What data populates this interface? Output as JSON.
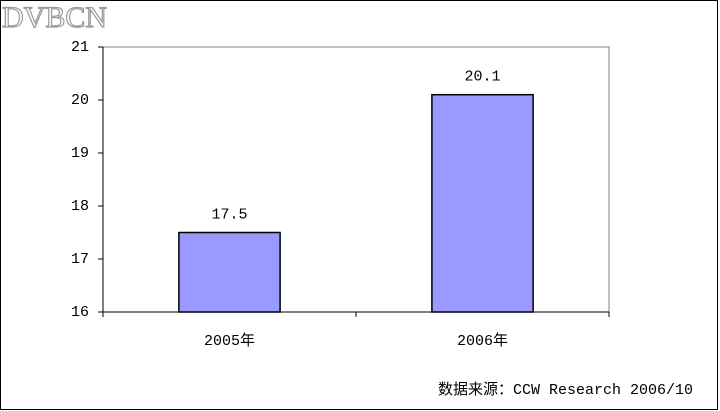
{
  "watermark": "DVBCN",
  "chart_data": {
    "type": "bar",
    "categories": [
      "2005年",
      "2006年"
    ],
    "values": [
      17.5,
      20.1
    ],
    "color": "#9999ff",
    "ylim": [
      16,
      21
    ],
    "yticks": [
      16,
      17,
      18,
      19,
      20,
      21
    ],
    "grid": false,
    "data_labels": true,
    "source": "数据来源：CCW Research 2006/10"
  }
}
